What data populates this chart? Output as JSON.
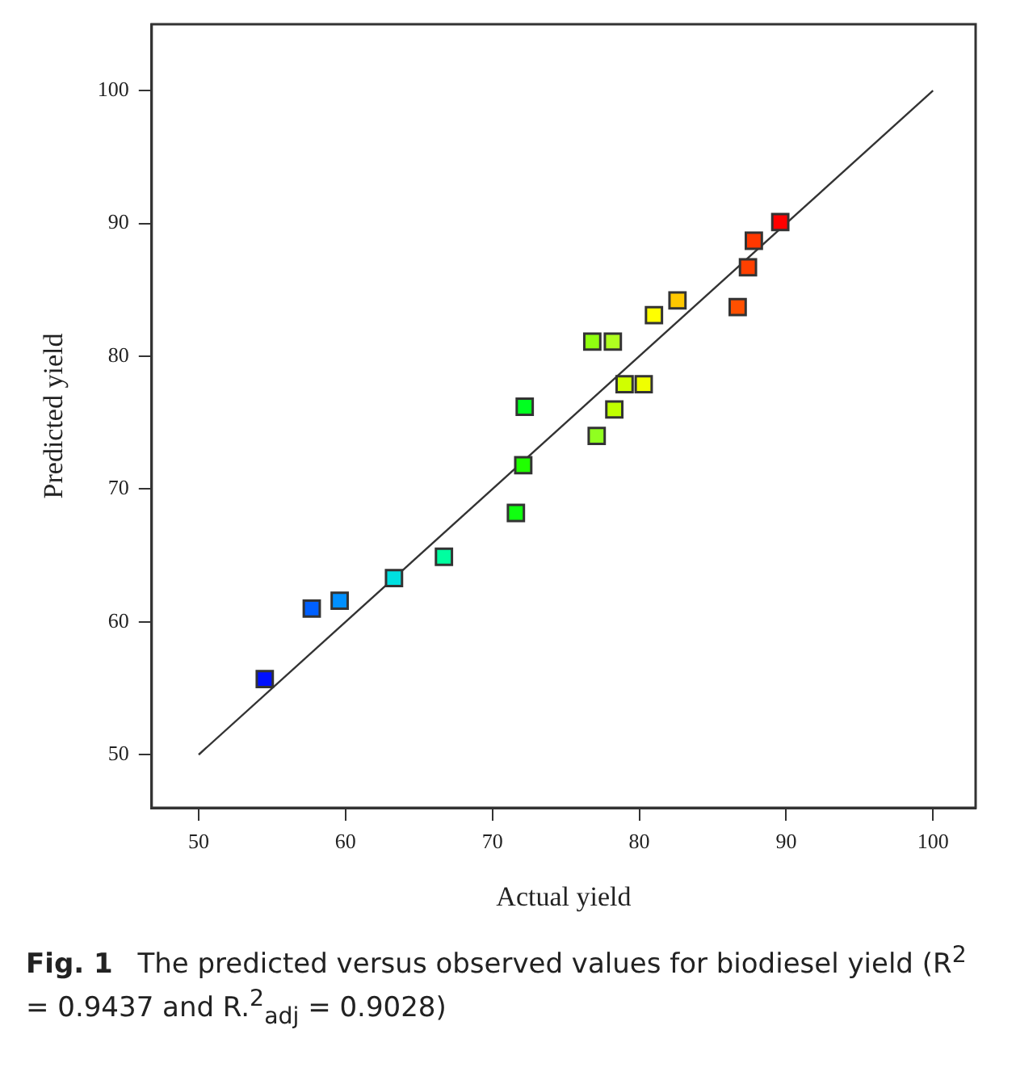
{
  "chart_data": {
    "type": "scatter",
    "xlabel": "Actual yield",
    "ylabel": "Predicted yield",
    "xlim": [
      46.8,
      102.9
    ],
    "ylim": [
      46,
      105
    ],
    "xticks": [
      50,
      60,
      70,
      80,
      90,
      100
    ],
    "yticks": [
      50,
      60,
      70,
      80,
      90,
      100
    ],
    "grid": false,
    "legend": false,
    "marker": "square",
    "series": [
      {
        "x": [
          54.5,
          57.7,
          59.6,
          63.3,
          66.7,
          71.6,
          72.1,
          72.2,
          77.1,
          78.3,
          79.0,
          80.3,
          76.8,
          78.2,
          81.0,
          82.6,
          86.7,
          87.4,
          87.8,
          89.6
        ],
        "values": [
          55.7,
          61.0,
          61.6,
          63.3,
          64.9,
          68.2,
          71.8,
          76.2,
          74.0,
          76.0,
          77.9,
          77.9,
          81.1,
          81.1,
          83.1,
          84.2,
          83.7,
          86.7,
          88.7,
          90.1
        ],
        "colors": [
          "#0010ff",
          "#0060ff",
          "#0090ff",
          "#00e0e0",
          "#00ffa0",
          "#10ff10",
          "#20ff00",
          "#00ff20",
          "#90ff20",
          "#c0ff00",
          "#d0ff00",
          "#f0ff00",
          "#90ff10",
          "#b0ff20",
          "#ffff00",
          "#ffc800",
          "#ff5000",
          "#ff4000",
          "#ff3800",
          "#ff0000"
        ]
      },
      {
        "type": "line",
        "marker": "none",
        "color": "#333333",
        "x": [
          50,
          100
        ],
        "values": [
          50,
          100
        ]
      }
    ],
    "annotations": [
      "Fig. 1",
      "The predicted versus observed values for biodiesel yield (R$^{2}$ = 0.9437 and R.$^{2}$$_{adj}$ = 0.9028)"
    ]
  }
}
